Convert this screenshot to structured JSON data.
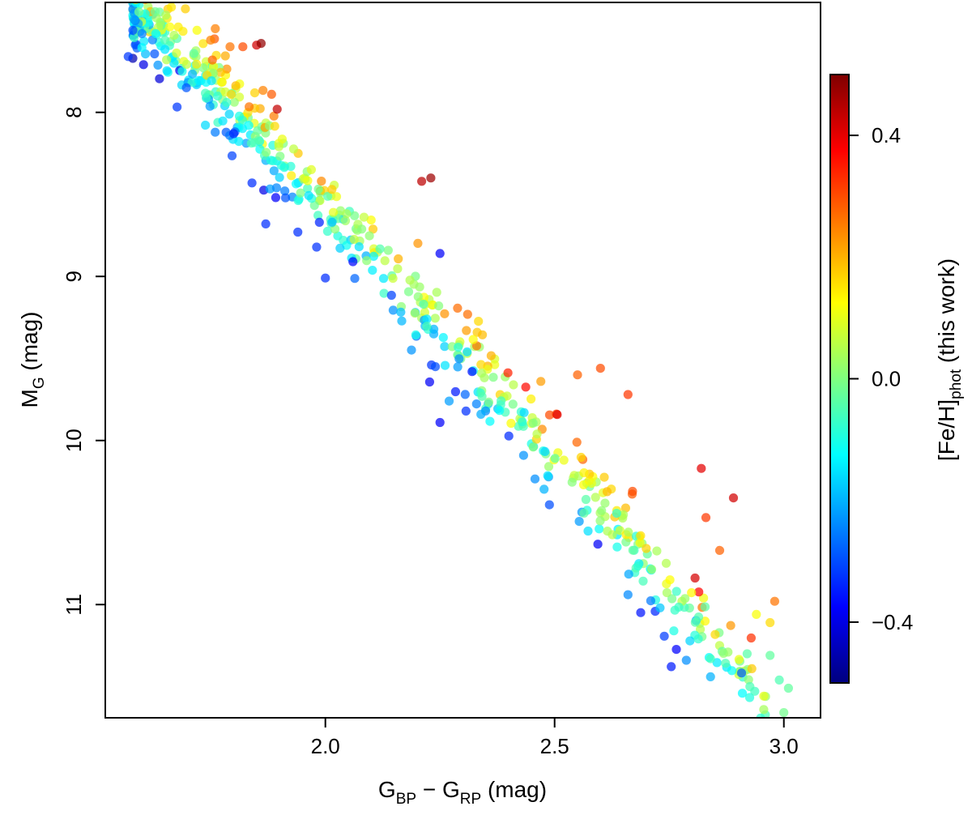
{
  "chart_data": {
    "type": "scatter",
    "title": "",
    "xlabel": {
      "main": "G",
      "sub1": "BP",
      "mid": " − G",
      "sub2": "RP",
      "unit": " (mag)"
    },
    "ylabel": {
      "main": "M",
      "sub": "G",
      "unit": " (mag)"
    },
    "xlim": [
      1.52,
      3.08
    ],
    "ylim": [
      11.69,
      7.33
    ],
    "y_inverted": true,
    "x_ticks": [
      2.0,
      2.5,
      3.0
    ],
    "x_tick_labels": [
      "2.0",
      "2.5",
      "3.0"
    ],
    "y_ticks": [
      8,
      9,
      10,
      11
    ],
    "y_tick_labels": [
      "8",
      "9",
      "10",
      "11"
    ],
    "colorbar": {
      "label_main": "[Fe/H]",
      "label_sub": "phot",
      "label_rest": " (this work)",
      "range": [
        -0.5,
        0.5
      ],
      "ticks": [
        -0.4,
        0.0,
        0.4
      ],
      "tick_labels": [
        "−0.4",
        "0.0",
        "0.4"
      ],
      "colors": [
        "#00007f",
        "#0000ff",
        "#007fff",
        "#00ffff",
        "#7fff7f",
        "#ffff00",
        "#ff7f00",
        "#ff0000",
        "#7f0000"
      ]
    },
    "marker_opacity": 0.72,
    "sequence_model": "main-sequence band: metal-rich stars above (brighter), metal-poor stars below",
    "points": [
      {
        "x": 1.58,
        "y": 7.5,
        "feh": -0.3
      },
      {
        "x": 1.6,
        "y": 7.52,
        "feh": -0.25
      },
      {
        "x": 1.57,
        "y": 7.66,
        "feh": -0.32
      },
      {
        "x": 1.63,
        "y": 7.52,
        "feh": -0.12
      },
      {
        "x": 1.65,
        "y": 7.56,
        "feh": -0.05
      },
      {
        "x": 1.67,
        "y": 7.53,
        "feh": 0.05
      },
      {
        "x": 1.72,
        "y": 7.5,
        "feh": 0.12
      },
      {
        "x": 1.76,
        "y": 7.49,
        "feh": 0.25
      },
      {
        "x": 1.82,
        "y": 7.6,
        "feh": 0.3
      },
      {
        "x": 1.85,
        "y": 7.59,
        "feh": 0.42
      },
      {
        "x": 1.86,
        "y": 7.58,
        "feh": 0.48
      },
      {
        "x": 2.23,
        "y": 8.4,
        "feh": 0.47
      },
      {
        "x": 2.21,
        "y": 8.42,
        "feh": 0.44
      },
      {
        "x": 2.25,
        "y": 8.86,
        "feh": -0.38
      },
      {
        "x": 2.25,
        "y": 9.89,
        "feh": -0.38
      },
      {
        "x": 2.27,
        "y": 9.76,
        "feh": -0.22
      },
      {
        "x": 2.24,
        "y": 9.55,
        "feh": -0.3
      },
      {
        "x": 2.32,
        "y": 9.58,
        "feh": -0.36
      },
      {
        "x": 2.47,
        "y": 9.64,
        "feh": 0.22
      },
      {
        "x": 2.55,
        "y": 9.6,
        "feh": 0.28
      },
      {
        "x": 2.6,
        "y": 9.56,
        "feh": 0.3
      },
      {
        "x": 2.66,
        "y": 9.72,
        "feh": 0.32
      },
      {
        "x": 2.67,
        "y": 10.31,
        "feh": 0.3
      },
      {
        "x": 2.82,
        "y": 10.17,
        "feh": 0.4
      },
      {
        "x": 2.89,
        "y": 10.35,
        "feh": 0.42
      },
      {
        "x": 2.83,
        "y": 10.47,
        "feh": 0.32
      },
      {
        "x": 2.86,
        "y": 10.67,
        "feh": 0.28
      },
      {
        "x": 2.98,
        "y": 10.98,
        "feh": 0.26
      },
      {
        "x": 2.97,
        "y": 11.11,
        "feh": 0.16
      },
      {
        "x": 2.94,
        "y": 11.06,
        "feh": 0.12
      },
      {
        "x": 3.01,
        "y": 11.51,
        "feh": -0.03
      },
      {
        "x": 2.99,
        "y": 11.46,
        "feh": -0.05
      },
      {
        "x": 2.97,
        "y": 11.31,
        "feh": -0.03
      },
      {
        "x": 2.92,
        "y": 11.3,
        "feh": -0.04
      },
      {
        "x": 2.84,
        "y": 11.44,
        "feh": -0.2
      },
      {
        "x": 2.84,
        "y": 11.33,
        "feh": -0.06
      },
      {
        "x": 2.73,
        "y": 11.02,
        "feh": -0.18
      },
      {
        "x": 2.66,
        "y": 10.94,
        "feh": -0.24
      },
      {
        "x": 2.76,
        "y": 11.16,
        "feh": -0.1
      },
      {
        "x": 1.94,
        "y": 8.73,
        "feh": -0.33
      },
      {
        "x": 1.87,
        "y": 8.68,
        "feh": -0.33
      },
      {
        "x": 2.0,
        "y": 9.01,
        "feh": -0.33
      },
      {
        "x": 2.06,
        "y": 8.91,
        "feh": -0.37
      },
      {
        "x": 1.84,
        "y": 8.43,
        "feh": -0.33
      },
      {
        "x": 1.8,
        "y": 8.13,
        "feh": -0.34
      }
    ],
    "generated_band": {
      "count": 640,
      "x_range": [
        1.58,
        3.0
      ],
      "seed": 7
    }
  }
}
